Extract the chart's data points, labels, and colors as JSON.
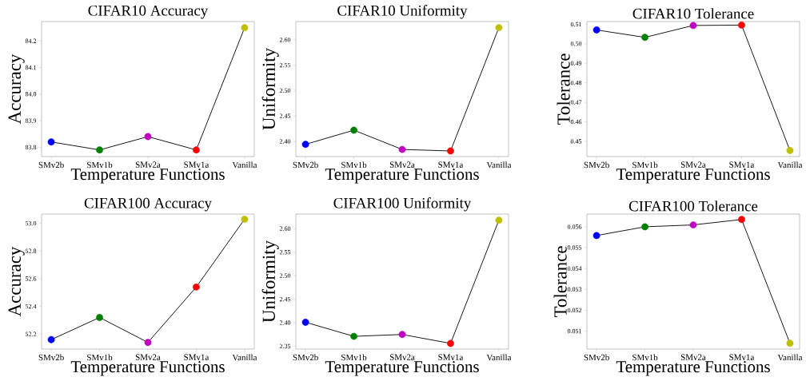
{
  "chart_data": [
    {
      "type": "line",
      "title": "CIFAR10 Accuracy",
      "xlabel": "Temperature Functions",
      "ylabel": "Accuracy",
      "categories": [
        "SMv2b",
        "SMv1b",
        "SMv2a",
        "SMv1a",
        "Vanilla"
      ],
      "color": "#000000",
      "marker": "circle",
      "series": [
        {
          "values": [
            83.82,
            83.79,
            83.84,
            83.79,
            84.25
          ],
          "colors": [
            "#0000ff",
            "#008000",
            "#bf00bf",
            "#ff0000",
            "#bfbf00"
          ]
        }
      ],
      "ylim": [
        83.765,
        84.273
      ],
      "yticks": [
        83.8,
        83.9,
        {
          "value": 84.0,
          "label": "84.0"
        },
        84.1,
        84.2
      ]
    },
    {
      "type": "line",
      "title": "CIFAR10 Uniformity",
      "xlabel": "Temperature Functions",
      "ylabel": "Uniformity",
      "categories": [
        "SMv2b",
        "SMv1b",
        "SMv2a",
        "SMv1a",
        "Vanilla"
      ],
      "color": "#000000",
      "marker": "circle",
      "series": [
        {
          "values": [
            2.394,
            2.422,
            2.384,
            2.381,
            2.624
          ],
          "colors": [
            "#0000ff",
            "#008000",
            "#bf00bf",
            "#ff0000",
            "#bfbf00"
          ]
        }
      ],
      "ylim": [
        2.37,
        2.636
      ],
      "yticks": [
        {
          "value": 2.4,
          "label": "2.40"
        },
        2.45,
        {
          "value": 2.5,
          "label": "2.50"
        },
        2.55,
        {
          "value": 2.6,
          "label": "2.60"
        }
      ]
    },
    {
      "type": "line",
      "title": "CIFAR10 Tolerance",
      "xlabel": "Temperature Functions",
      "ylabel": "Tolerance",
      "categories": [
        "SMv2b",
        "SMv1b",
        "SMv2a",
        "SMv1a",
        "Vanilla"
      ],
      "color": "#000000",
      "marker": "circle",
      "series": [
        {
          "values": [
            0.5071,
            0.5033,
            0.5094,
            0.5096,
            0.4453
          ],
          "colors": [
            "#0000ff",
            "#008000",
            "#bf00bf",
            "#ff0000",
            "#bfbf00"
          ]
        }
      ],
      "ylim": [
        0.4422,
        0.5114
      ],
      "yticks": [
        0.45,
        0.46,
        0.47,
        0.48,
        0.49,
        {
          "value": 0.5,
          "label": "0.50"
        },
        0.51
      ]
    },
    {
      "type": "line",
      "title": "CIFAR100 Accuracy",
      "xlabel": "Temperature Functions",
      "ylabel": "Accuracy",
      "categories": [
        "SMv2b",
        "SMv1b",
        "SMv2a",
        "SMv1a",
        "Vanilla"
      ],
      "color": "#000000",
      "marker": "circle",
      "series": [
        {
          "values": [
            52.16,
            52.32,
            52.14,
            52.54,
            53.03
          ],
          "colors": [
            "#0000ff",
            "#008000",
            "#bf00bf",
            "#ff0000",
            "#bfbf00"
          ]
        }
      ],
      "ylim": [
        52.092,
        53.067
      ],
      "yticks": [
        52.2,
        52.4,
        52.6,
        52.8,
        {
          "value": 53.0,
          "label": "53.0"
        }
      ]
    },
    {
      "type": "line",
      "title": "CIFAR100 Uniformity",
      "xlabel": "Temperature Functions",
      "ylabel": "Uniformity",
      "categories": [
        "SMv2b",
        "SMv1b",
        "SMv2a",
        "SMv1a",
        "Vanilla"
      ],
      "color": "#000000",
      "marker": "circle",
      "series": [
        {
          "values": [
            2.401,
            2.371,
            2.375,
            2.356,
            2.618
          ],
          "colors": [
            "#0000ff",
            "#008000",
            "#bf00bf",
            "#ff0000",
            "#bfbf00"
          ]
        }
      ],
      "ylim": [
        2.344,
        2.631
      ],
      "yticks": [
        2.35,
        {
          "value": 2.4,
          "label": "2.40"
        },
        2.45,
        {
          "value": 2.5,
          "label": "2.50"
        },
        2.55,
        {
          "value": 2.6,
          "label": "2.60"
        }
      ]
    },
    {
      "type": "line",
      "title": "CIFAR100 Tolerance",
      "xlabel": "Temperature Functions",
      "ylabel": "Tolerance",
      "categories": [
        "SMv2b",
        "SMv1b",
        "SMv2a",
        "SMv1a",
        "Vanilla"
      ],
      "color": "#000000",
      "marker": "circle",
      "series": [
        {
          "values": [
            0.05558,
            0.056,
            0.05609,
            0.05635,
            0.05042
          ],
          "colors": [
            "#0000ff",
            "#008000",
            "#bf00bf",
            "#ff0000",
            "#bfbf00"
          ]
        }
      ],
      "ylim": [
        0.05014,
        0.05661
      ],
      "yticks": [
        0.051,
        0.052,
        0.053,
        0.054,
        0.055,
        0.056
      ]
    }
  ]
}
